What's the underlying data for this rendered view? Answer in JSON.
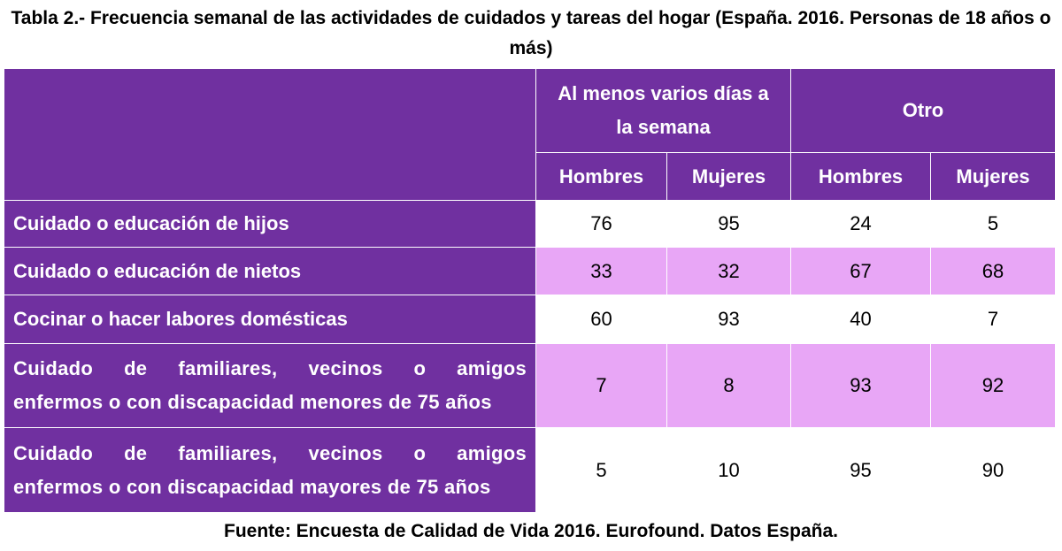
{
  "title": "Tabla 2.- Frecuencia semanal de las actividades de cuidados y tareas del hogar (España. 2016. Personas de 18 años o más)",
  "header": {
    "group1": "Al menos varios días a la semana",
    "group2": "Otro",
    "sub": [
      "Hombres",
      "Mujeres",
      "Hombres",
      "Mujeres"
    ]
  },
  "rows": [
    {
      "label": "Cuidado o educación de hijos",
      "values": [
        "76",
        "95",
        "24",
        "5"
      ]
    },
    {
      "label": "Cuidado o educación de nietos",
      "values": [
        "33",
        "32",
        "67",
        "68"
      ]
    },
    {
      "label": "Cocinar o hacer labores domésticas",
      "values": [
        "60",
        "93",
        "40",
        "7"
      ]
    },
    {
      "label_line1": "Cuidado de familiares, vecinos o amigos",
      "label_line2": "enfermos o con discapacidad menores de 75 años",
      "values": [
        "7",
        "8",
        "93",
        "92"
      ]
    },
    {
      "label_line1": "Cuidado de familiares, vecinos o amigos",
      "label_line2": "enfermos o con discapacidad mayores de 75 años",
      "values": [
        "5",
        "10",
        "95",
        "90"
      ]
    }
  ],
  "colors": {
    "header_bg": "#7030a0",
    "header_text": "#ffffff",
    "stripe": "#e8a6f6"
  },
  "footer": "Fuente: Encuesta de Calidad de Vida 2016. Eurofound. Datos España."
}
